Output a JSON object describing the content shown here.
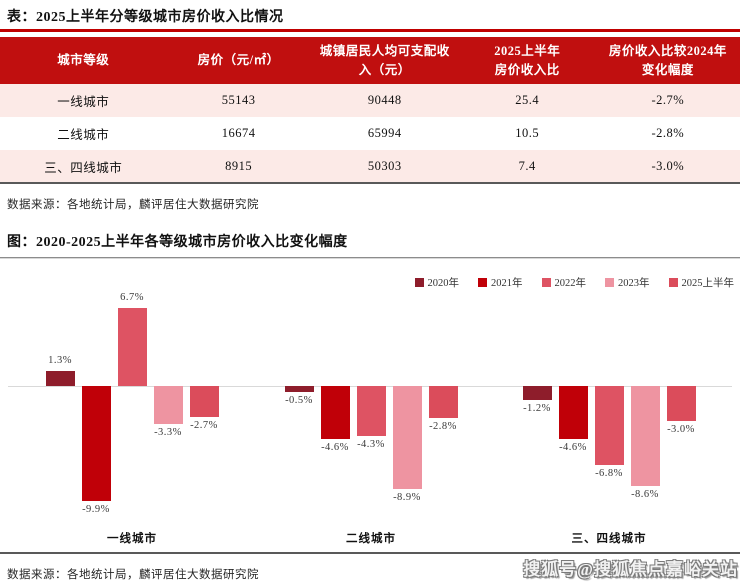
{
  "page": {
    "table_title": "表：2025上半年分等级城市房价收入比情况",
    "table_source": "数据来源：各地统计局，麟评居住大数据研究院",
    "chart_title": "图：2020-2025上半年各等级城市房价收入比变化幅度",
    "chart_source": "数据来源：各地统计局，麟评居住大数据研究院",
    "watermark": "搜狐号@搜狐焦点嘉峪关站",
    "colors": {
      "accent_red": "#C00000",
      "table_header_bg": "#C00F0F",
      "row_stripe_pink": "#FCEAE7",
      "rule_gray": "#8C8C8C",
      "rule_dark": "#595959",
      "axis_line": "#D9D9D9"
    }
  },
  "chart_data": [
    {
      "type": "table",
      "title": "表：2025上半年分等级城市房价收入比情况",
      "columns": [
        "城市等级",
        "房价（元/㎡）",
        "城镇居民人均可支配收\n入（元）",
        "2025上半年\n房价收入比",
        "房价收入比较2024年\n变化幅度"
      ],
      "rows": [
        [
          "一线城市",
          "55143",
          "90448",
          "25.4",
          "-2.7%"
        ],
        [
          "二线城市",
          "16674",
          "65994",
          "10.5",
          "-2.8%"
        ],
        [
          "三、四线城市",
          "8915",
          "50303",
          "7.4",
          "-3.0%"
        ]
      ],
      "source": "数据来源：各地统计局，麟评居住大数据研究院"
    },
    {
      "type": "bar",
      "title": "图：2020-2025上半年各等级城市房价收入比变化幅度",
      "categories": [
        "一线城市",
        "二线城市",
        "三、四线城市"
      ],
      "series": [
        {
          "name": "2020年",
          "color": "#8E1D2B",
          "values": [
            1.3,
            -0.5,
            -1.2
          ]
        },
        {
          "name": "2021年",
          "color": "#C00008",
          "values": [
            -9.9,
            -4.6,
            -4.6
          ]
        },
        {
          "name": "2022年",
          "color": "#DE5363",
          "values": [
            6.7,
            -4.3,
            -6.8
          ]
        },
        {
          "name": "2023年",
          "color": "#EE94A1",
          "values": [
            -3.3,
            -8.9,
            -8.6
          ]
        },
        {
          "name": "2025上半年",
          "color": "#DB4C5B",
          "values": [
            -2.7,
            -2.8,
            -3.0
          ]
        }
      ],
      "value_labels": true,
      "value_label_format": "0.0%",
      "ylim": [
        -10.5,
        7.5
      ],
      "legend_position": "top-right",
      "grid": false,
      "unit": "%",
      "source": "数据来源：各地统计局，麟评居住大数据研究院"
    }
  ]
}
